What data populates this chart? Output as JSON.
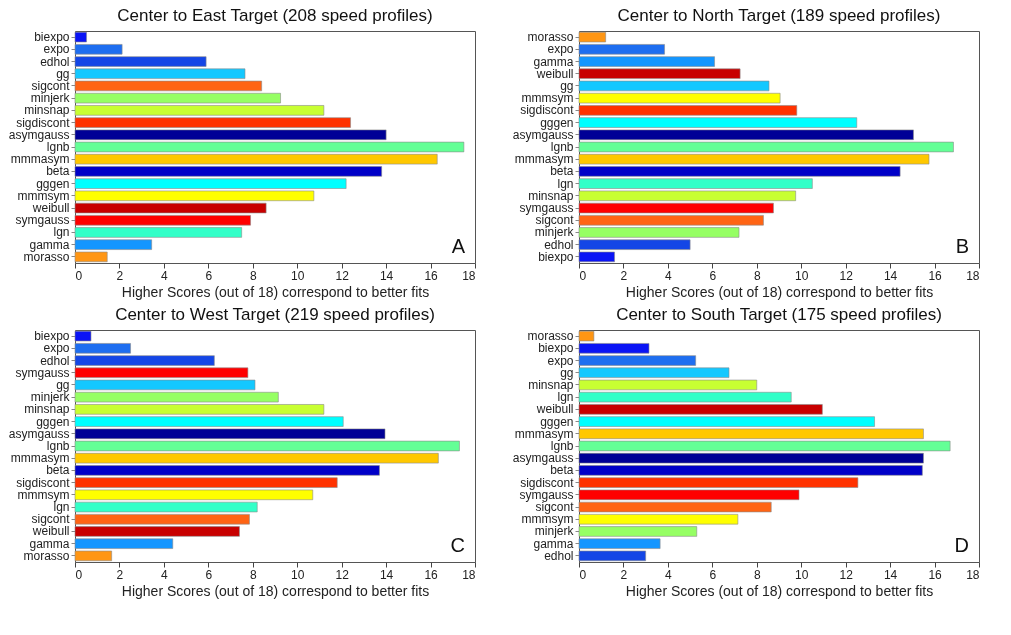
{
  "chart_data": [
    {
      "type": "bar",
      "orientation": "horizontal",
      "title": "Center to East Target (208 speed profiles)",
      "xlabel": "Higher Scores (out of 18) correspond to better fits",
      "xlim": [
        0,
        18
      ],
      "xticks": [
        0,
        2,
        4,
        6,
        8,
        10,
        12,
        14,
        16,
        18
      ],
      "annotations": [
        "A"
      ],
      "categories": [
        "biexpo",
        "expo",
        "edhol",
        "gg",
        "sigcont",
        "minjerk",
        "minsnap",
        "sigdiscont",
        "asymgauss",
        "lgnb",
        "mmmasym",
        "beta",
        "gggen",
        "mmmsym",
        "weibull",
        "symgauss",
        "lgn",
        "gamma",
        "morasso"
      ],
      "values": [
        0.52,
        2.12,
        5.9,
        7.65,
        8.4,
        9.25,
        11.2,
        12.4,
        14.0,
        17.5,
        16.3,
        13.8,
        12.2,
        10.75,
        8.6,
        7.9,
        7.5,
        3.45,
        1.45
      ],
      "colors": [
        "#0a14f5",
        "#1e6ef0",
        "#1446e6",
        "#14c8ff",
        "#ff6414",
        "#96ff64",
        "#c8ff32",
        "#ff3200",
        "#000096",
        "#64ff96",
        "#ffc800",
        "#0000c8",
        "#00ffff",
        "#ffff00",
        "#c80000",
        "#ff0000",
        "#32ffc8",
        "#1496ff",
        "#ff9614"
      ]
    },
    {
      "type": "bar",
      "orientation": "horizontal",
      "title": "Center to North Target (189 speed profiles)",
      "xlabel": "Higher Scores (out of 18) correspond to better fits",
      "xlim": [
        0,
        18
      ],
      "xticks": [
        0,
        2,
        4,
        6,
        8,
        10,
        12,
        14,
        16,
        18
      ],
      "annotations": [
        "B"
      ],
      "categories": [
        "morasso",
        "expo",
        "gamma",
        "weibull",
        "gg",
        "mmmsym",
        "sigdiscont",
        "gggen",
        "asymgauss",
        "lgnb",
        "mmmasym",
        "beta",
        "lgn",
        "minsnap",
        "symgauss",
        "sigcont",
        "minjerk",
        "edhol",
        "biexpo"
      ],
      "values": [
        1.2,
        3.85,
        6.1,
        7.25,
        8.55,
        9.05,
        9.8,
        12.5,
        15.05,
        16.85,
        15.75,
        14.45,
        10.5,
        9.75,
        8.75,
        8.3,
        7.2,
        5.0,
        1.6
      ],
      "colors": [
        "#ff9614",
        "#1e6ef0",
        "#1496ff",
        "#c80000",
        "#14c8ff",
        "#ffff00",
        "#ff3200",
        "#00ffff",
        "#000096",
        "#64ff96",
        "#ffc800",
        "#0000c8",
        "#32ffc8",
        "#c8ff32",
        "#ff0000",
        "#ff6414",
        "#96ff64",
        "#1446e6",
        "#0a14f5"
      ]
    },
    {
      "type": "bar",
      "orientation": "horizontal",
      "title": "Center to West Target (219 speed profiles)",
      "xlabel": "Higher Scores (out of 18) correspond to better fits",
      "xlim": [
        0,
        18
      ],
      "xticks": [
        0,
        2,
        4,
        6,
        8,
        10,
        12,
        14,
        16,
        18
      ],
      "annotations": [
        "C"
      ],
      "categories": [
        "biexpo",
        "expo",
        "edhol",
        "symgauss",
        "gg",
        "minjerk",
        "minsnap",
        "gggen",
        "asymgauss",
        "lgnb",
        "mmmasym",
        "beta",
        "sigdiscont",
        "mmmsym",
        "lgn",
        "sigcont",
        "weibull",
        "gamma",
        "morasso"
      ],
      "values": [
        0.72,
        2.5,
        6.27,
        7.78,
        8.1,
        9.15,
        11.2,
        12.07,
        13.95,
        17.3,
        16.35,
        13.7,
        11.8,
        10.7,
        8.2,
        7.85,
        7.4,
        4.4,
        1.65
      ],
      "colors": [
        "#0a14f5",
        "#1e6ef0",
        "#1446e6",
        "#ff0000",
        "#14c8ff",
        "#96ff64",
        "#c8ff32",
        "#00ffff",
        "#000096",
        "#64ff96",
        "#ffc800",
        "#0000c8",
        "#ff3200",
        "#ffff00",
        "#32ffc8",
        "#ff6414",
        "#c80000",
        "#1496ff",
        "#ff9614"
      ]
    },
    {
      "type": "bar",
      "orientation": "horizontal",
      "title": "Center to South Target (175 speed profiles)",
      "xlabel": "Higher Scores (out of 18) correspond to better fits",
      "xlim": [
        0,
        18
      ],
      "xticks": [
        0,
        2,
        4,
        6,
        8,
        10,
        12,
        14,
        16,
        18
      ],
      "annotations": [
        "D"
      ],
      "categories": [
        "morasso",
        "biexpo",
        "expo",
        "gg",
        "minsnap",
        "lgn",
        "weibull",
        "gggen",
        "mmmasym",
        "lgnb",
        "asymgauss",
        "beta",
        "sigdiscont",
        "symgauss",
        "sigcont",
        "mmmsym",
        "minjerk",
        "gamma",
        "edhol"
      ],
      "values": [
        0.67,
        3.15,
        5.25,
        6.75,
        8.0,
        9.55,
        10.95,
        13.3,
        15.5,
        16.7,
        15.5,
        15.45,
        12.55,
        9.9,
        8.65,
        7.15,
        5.3,
        3.65,
        3.0
      ],
      "colors": [
        "#ff9614",
        "#0a14f5",
        "#1e6ef0",
        "#14c8ff",
        "#c8ff32",
        "#32ffc8",
        "#c80000",
        "#00ffff",
        "#ffc800",
        "#64ff96",
        "#000096",
        "#0000c8",
        "#ff3200",
        "#ff0000",
        "#ff6414",
        "#ffff00",
        "#96ff64",
        "#1496ff",
        "#1446e6"
      ]
    }
  ]
}
